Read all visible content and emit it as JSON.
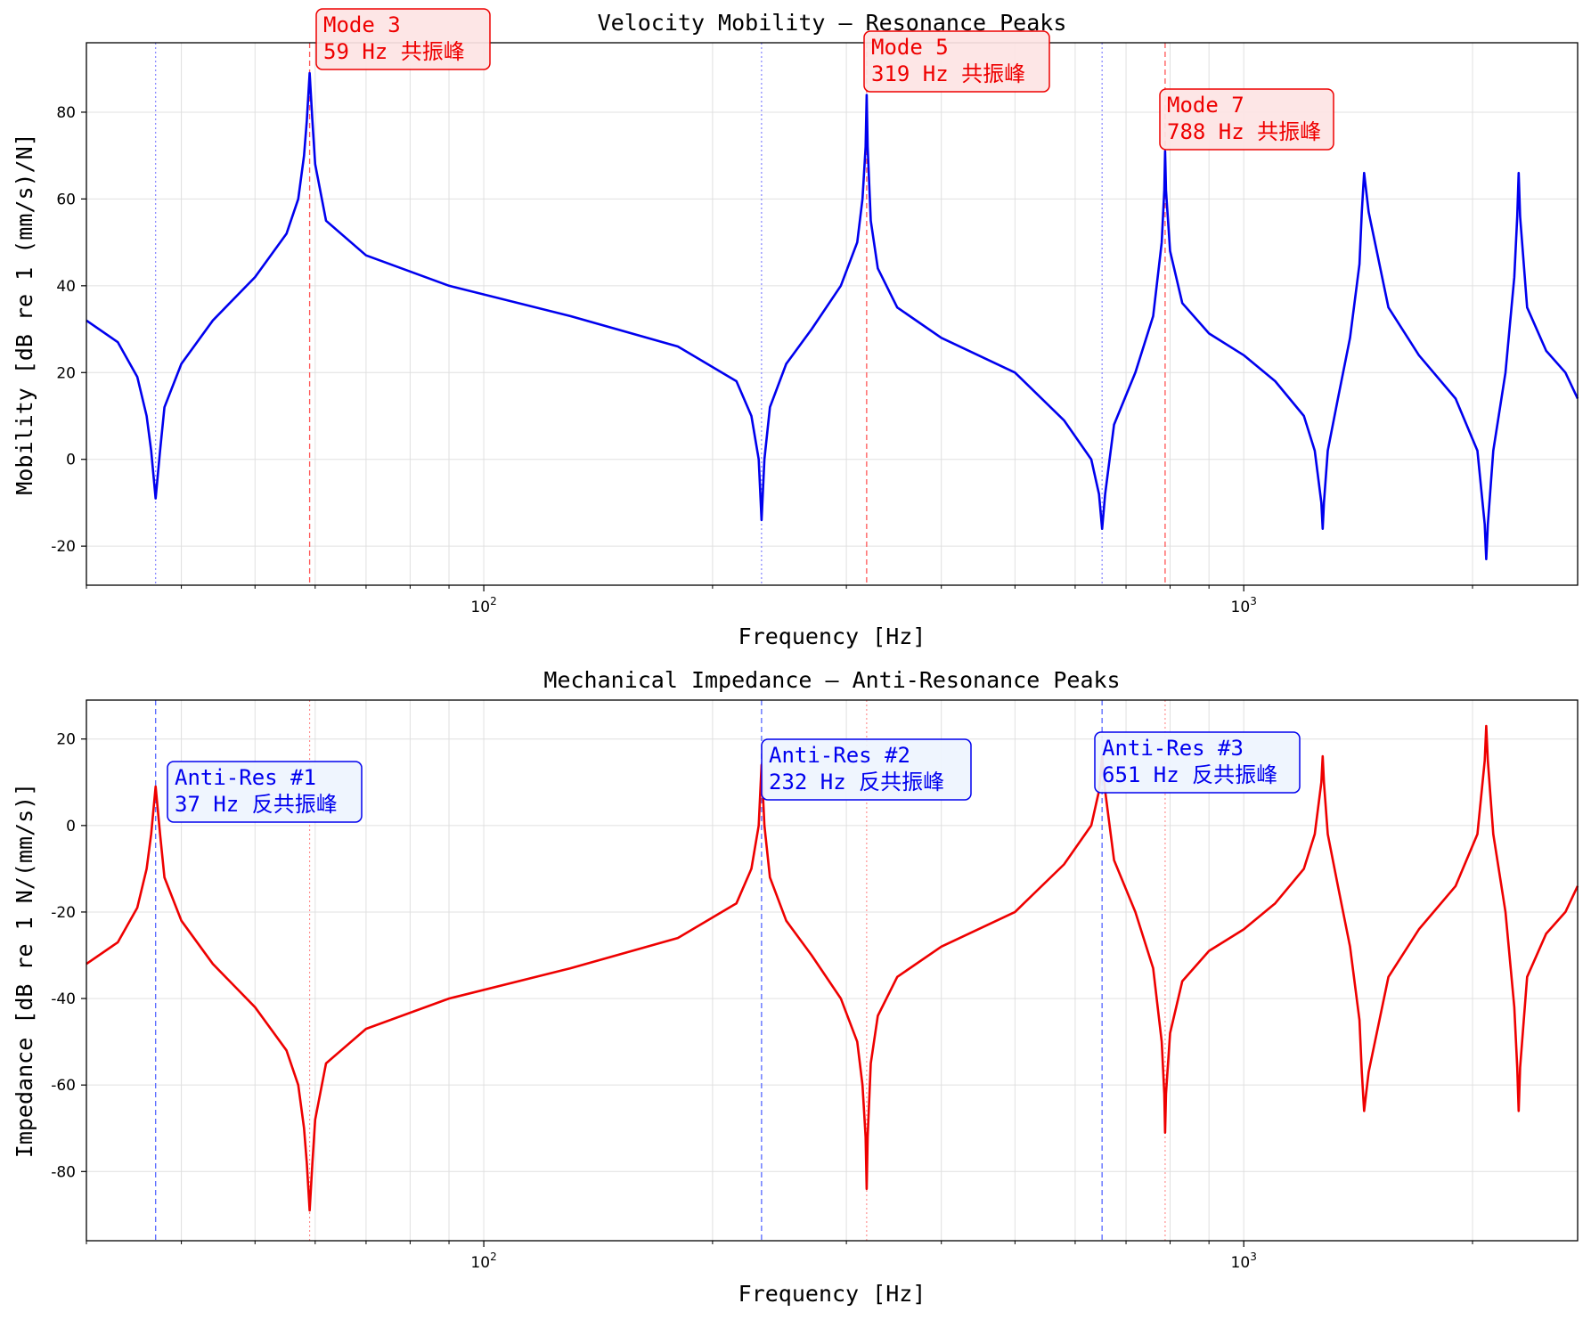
{
  "chart_data": [
    {
      "type": "line",
      "title": "Velocity Mobility — Resonance Peaks",
      "xlabel": "Frequency [Hz]",
      "ylabel": "Mobility [dB re 1 (mm/s)/N]",
      "xscale": "log",
      "xlim": [
        30,
        2750
      ],
      "ylim": [
        -29,
        96
      ],
      "yticks": [
        -20,
        0,
        20,
        40,
        60,
        80
      ],
      "xticks": [
        {
          "value": 100,
          "base": "10",
          "exp": "2"
        },
        {
          "value": 1000,
          "base": "10",
          "exp": "3"
        }
      ],
      "grid": true,
      "color": "#0000ee",
      "series": [
        {
          "x": [
            30,
            33,
            35,
            36,
            36.5,
            37,
            37.5,
            38,
            40,
            44,
            50,
            55,
            57,
            58,
            58.5,
            59,
            59.5,
            60,
            62,
            70,
            90,
            130,
            180,
            215,
            225,
            230,
            232,
            234,
            238,
            250,
            270,
            295,
            310,
            315,
            318,
            319,
            320,
            323,
            330,
            350,
            400,
            500,
            580,
            630,
            645,
            651,
            657,
            675,
            720,
            760,
            780,
            786,
            788,
            790,
            800,
            830,
            900,
            1000,
            1100,
            1200,
            1240,
            1265,
            1270,
            1275,
            1290,
            1330,
            1380,
            1420,
            1430,
            1440,
            1460,
            1550,
            1700,
            1900,
            2030,
            2075,
            2085,
            2095,
            2130,
            2210,
            2270,
            2290,
            2300,
            2310,
            2360,
            2500,
            2650,
            2750
          ],
          "y": [
            32,
            27,
            19,
            10,
            2,
            -9,
            2,
            12,
            22,
            32,
            42,
            52,
            60,
            70,
            78,
            89,
            78,
            68,
            55,
            47,
            40,
            33,
            26,
            18,
            10,
            0,
            -14,
            0,
            12,
            22,
            30,
            40,
            50,
            60,
            72,
            84,
            72,
            55,
            44,
            35,
            28,
            20,
            9,
            0,
            -8,
            -16,
            -8,
            8,
            20,
            33,
            50,
            62,
            71,
            62,
            48,
            36,
            29,
            24,
            18,
            10,
            2,
            -10,
            -16,
            -10,
            2,
            14,
            28,
            45,
            57,
            66,
            57,
            35,
            24,
            14,
            2,
            -15,
            -23,
            -15,
            2,
            20,
            42,
            56,
            66,
            56,
            35,
            25,
            20,
            14
          ]
        }
      ],
      "markers": [
        {
          "x": 37,
          "kind": "anti-resonance"
        },
        {
          "x": 59,
          "kind": "resonance"
        },
        {
          "x": 232,
          "kind": "anti-resonance"
        },
        {
          "x": 319,
          "kind": "resonance"
        },
        {
          "x": 651,
          "kind": "anti-resonance"
        },
        {
          "x": 788,
          "kind": "resonance"
        }
      ],
      "annotations": [
        {
          "line1": "Mode 3",
          "line2": "59 Hz  共振峰"
        },
        {
          "line1": "Mode 5",
          "line2": "319 Hz  共振峰"
        },
        {
          "line1": "Mode 7",
          "line2": "788 Hz  共振峰"
        }
      ]
    },
    {
      "type": "line",
      "title": "Mechanical Impedance — Anti-Resonance Peaks",
      "xlabel": "Frequency [Hz]",
      "ylabel": "Impedance [dB re 1 N/(mm/s)]",
      "xscale": "log",
      "xlim": [
        30,
        2750
      ],
      "ylim": [
        -96,
        29
      ],
      "yticks": [
        -80,
        -60,
        -40,
        -20,
        0,
        20
      ],
      "xticks": [
        {
          "value": 100,
          "base": "10",
          "exp": "2"
        },
        {
          "value": 1000,
          "base": "10",
          "exp": "3"
        }
      ],
      "grid": true,
      "color": "#ee0000",
      "series": [
        {
          "x": [
            30,
            33,
            35,
            36,
            36.5,
            37,
            37.5,
            38,
            40,
            44,
            50,
            55,
            57,
            58,
            58.5,
            59,
            59.5,
            60,
            62,
            70,
            90,
            130,
            180,
            215,
            225,
            230,
            232,
            234,
            238,
            250,
            270,
            295,
            310,
            315,
            318,
            319,
            320,
            323,
            330,
            350,
            400,
            500,
            580,
            630,
            645,
            651,
            657,
            675,
            720,
            760,
            780,
            786,
            788,
            790,
            800,
            830,
            900,
            1000,
            1100,
            1200,
            1240,
            1265,
            1270,
            1275,
            1290,
            1330,
            1380,
            1420,
            1430,
            1440,
            1460,
            1550,
            1700,
            1900,
            2030,
            2075,
            2085,
            2095,
            2130,
            2210,
            2270,
            2290,
            2300,
            2310,
            2360,
            2500,
            2650,
            2750
          ],
          "y": [
            -32,
            -27,
            -19,
            -10,
            -2,
            9,
            -2,
            -12,
            -22,
            -32,
            -42,
            -52,
            -60,
            -70,
            -78,
            -89,
            -78,
            -68,
            -55,
            -47,
            -40,
            -33,
            -26,
            -18,
            -10,
            0,
            14,
            0,
            -12,
            -22,
            -30,
            -40,
            -50,
            -60,
            -72,
            -84,
            -72,
            -55,
            -44,
            -35,
            -28,
            -20,
            -9,
            0,
            8,
            16,
            8,
            -8,
            -20,
            -33,
            -50,
            -62,
            -71,
            -62,
            -48,
            -36,
            -29,
            -24,
            -18,
            -10,
            -2,
            10,
            16,
            10,
            -2,
            -14,
            -28,
            -45,
            -57,
            -66,
            -57,
            -35,
            -24,
            -14,
            -2,
            15,
            23,
            15,
            -2,
            -20,
            -42,
            -56,
            -66,
            -56,
            -35,
            -25,
            -20,
            -14
          ]
        }
      ],
      "markers": [
        {
          "x": 37,
          "kind": "anti-resonance"
        },
        {
          "x": 59,
          "kind": "resonance"
        },
        {
          "x": 232,
          "kind": "anti-resonance"
        },
        {
          "x": 319,
          "kind": "resonance"
        },
        {
          "x": 651,
          "kind": "anti-resonance"
        },
        {
          "x": 788,
          "kind": "resonance"
        }
      ],
      "annotations": [
        {
          "line1": "Anti-Res #1",
          "line2": "37 Hz  反共振峰"
        },
        {
          "line1": "Anti-Res #2",
          "line2": "232 Hz  反共振峰"
        },
        {
          "line1": "Anti-Res #3",
          "line2": "651 Hz  反共振峰"
        }
      ]
    }
  ]
}
